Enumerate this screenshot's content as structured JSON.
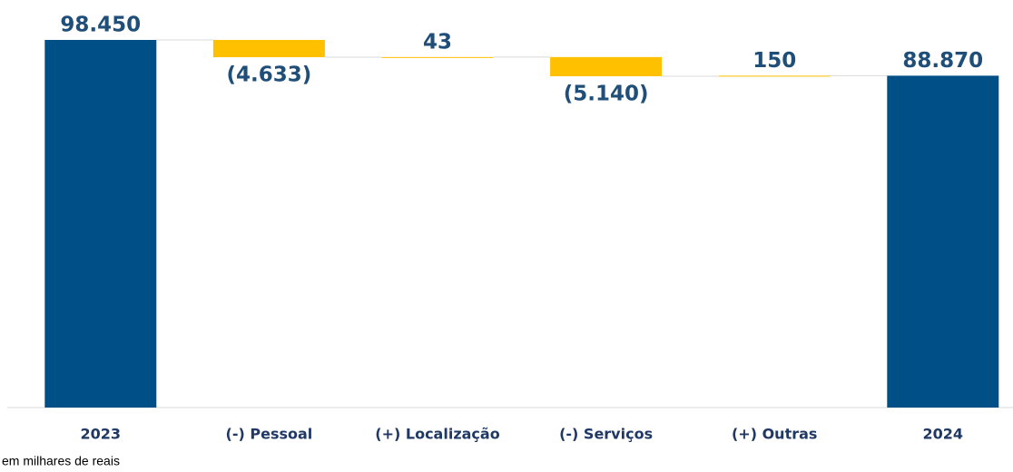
{
  "chart_data": {
    "type": "waterfall",
    "categories": [
      "2023",
      "(-) Pessoal",
      "(+) Localização",
      "(-) Serviços",
      "(+) Outras",
      "2024"
    ],
    "values": [
      98450,
      -4633,
      43,
      -5140,
      150,
      88870
    ],
    "value_labels": [
      "98.450",
      "(4.633)",
      "43",
      "(5.140)",
      "150",
      "88.870"
    ],
    "totals": [
      true,
      false,
      false,
      false,
      false,
      true
    ],
    "total_color": "#004f86",
    "change_color": "#ffc000",
    "ylim": [
      0,
      100000
    ],
    "note": "em milhares de reais"
  }
}
